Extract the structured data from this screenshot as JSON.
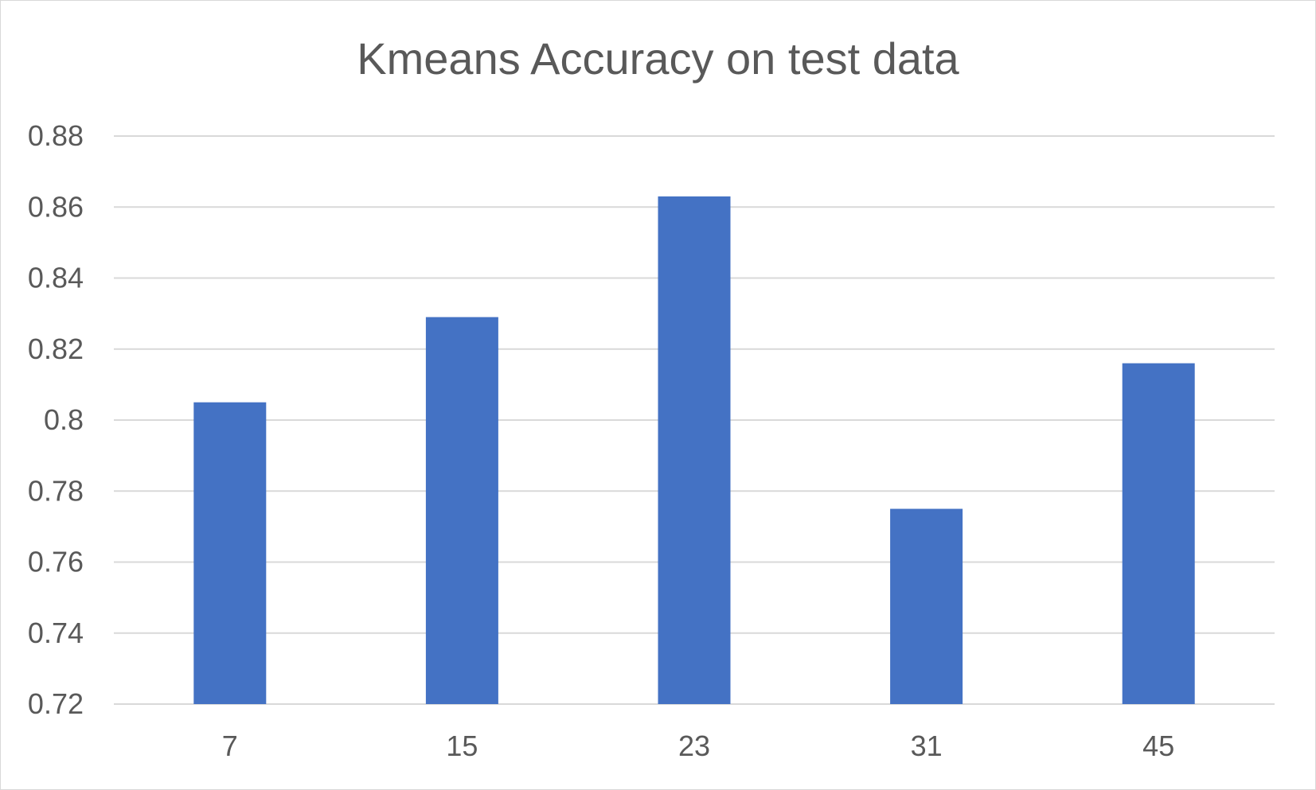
{
  "chart_data": {
    "type": "bar",
    "title": "Kmeans Accuracy on test data",
    "xlabel": "",
    "ylabel": "",
    "categories": [
      "7",
      "15",
      "23",
      "31",
      "45"
    ],
    "values": [
      0.805,
      0.829,
      0.863,
      0.775,
      0.816
    ],
    "ylim": [
      0.72,
      0.88
    ],
    "yticks": [
      "0.72",
      "0.74",
      "0.76",
      "0.78",
      "0.8",
      "0.82",
      "0.84",
      "0.86",
      "0.88"
    ],
    "grid": true,
    "legend": "none",
    "colors": {
      "bar": "#4472c4",
      "grid": "#d9d9d9",
      "text": "#595959"
    }
  }
}
